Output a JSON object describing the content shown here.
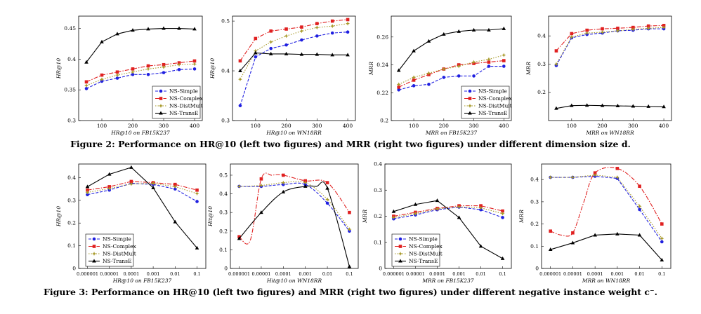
{
  "colors": {
    "NS-Simple": "#1f1fe0",
    "NS-Complex": "#e02020",
    "NS-DistMult": "#a89a2a",
    "NS-TransE": "#000000"
  },
  "series_names": [
    "NS-Simple",
    "NS-Complex",
    "NS-DistMult",
    "NS-TransE"
  ],
  "figure2": {
    "caption": "Figure 2: Performance on HR@10 (left two figures) and MRR (right two figures) under different dimension size d."
  },
  "figure3": {
    "caption": "Figure 3: Performance on HR@10 (left two figures) and MRR (right two figures) under different negative instance weight c⁻."
  },
  "chart_data": [
    {
      "type": "line",
      "figure": 2,
      "ylabel": "HR@10",
      "xlabel": "HR@10 on FB15K237",
      "x": [
        50,
        100,
        150,
        200,
        250,
        300,
        350,
        400
      ],
      "xticks": [
        "100",
        "200",
        "300",
        "400"
      ],
      "xlim": [
        25,
        425
      ],
      "ylim": [
        0.3,
        0.47
      ],
      "yticks": [
        "0.3",
        "0.35",
        "0.4",
        "0.45"
      ],
      "legend": "bottom-right",
      "series": [
        {
          "name": "NS-Simple",
          "values": [
            0.352,
            0.364,
            0.369,
            0.375,
            0.375,
            0.378,
            0.383,
            0.384
          ]
        },
        {
          "name": "NS-Complex",
          "values": [
            0.363,
            0.374,
            0.379,
            0.384,
            0.389,
            0.391,
            0.394,
            0.397
          ]
        },
        {
          "name": "NS-DistMult",
          "values": [
            0.357,
            0.367,
            0.374,
            0.379,
            0.384,
            0.387,
            0.391,
            0.392
          ]
        },
        {
          "name": "NS-TransE",
          "values": [
            0.395,
            0.428,
            0.441,
            0.447,
            0.449,
            0.45,
            0.45,
            0.449
          ]
        }
      ]
    },
    {
      "type": "line",
      "figure": 2,
      "ylabel": "HR@10",
      "xlabel": "HR@10 on WN18RR",
      "x": [
        50,
        100,
        150,
        200,
        250,
        300,
        350,
        400
      ],
      "xticks": [
        "100",
        "200",
        "300",
        "400"
      ],
      "xlim": [
        25,
        425
      ],
      "ylim": [
        0.3,
        0.51
      ],
      "yticks": [
        "0.3",
        "0.4",
        "0.5"
      ],
      "legend": "none",
      "series": [
        {
          "name": "NS-Simple",
          "values": [
            0.33,
            0.428,
            0.445,
            0.452,
            0.462,
            0.47,
            0.476,
            0.478
          ]
        },
        {
          "name": "NS-Complex",
          "values": [
            0.42,
            0.465,
            0.48,
            0.484,
            0.488,
            0.495,
            0.5,
            0.503
          ]
        },
        {
          "name": "NS-DistMult",
          "values": [
            0.383,
            0.44,
            0.458,
            0.47,
            0.48,
            0.487,
            0.49,
            0.495
          ]
        },
        {
          "name": "NS-TransE",
          "values": [
            0.4,
            0.436,
            0.434,
            0.434,
            0.433,
            0.433,
            0.432,
            0.432
          ]
        }
      ]
    },
    {
      "type": "line",
      "figure": 2,
      "ylabel": "MRR",
      "xlabel": "MRR on FB15K237",
      "x": [
        50,
        100,
        150,
        200,
        250,
        300,
        350,
        400
      ],
      "xticks": [
        "100",
        "200",
        "300",
        "400"
      ],
      "xlim": [
        25,
        425
      ],
      "ylim": [
        0.2,
        0.275
      ],
      "yticks": [
        "0.2",
        "0.22",
        "0.24",
        "0.26"
      ],
      "legend": "bottom-right",
      "series": [
        {
          "name": "NS-Simple",
          "values": [
            0.222,
            0.225,
            0.226,
            0.231,
            0.232,
            0.232,
            0.239,
            0.239
          ]
        },
        {
          "name": "NS-Complex",
          "values": [
            0.224,
            0.229,
            0.233,
            0.237,
            0.24,
            0.241,
            0.242,
            0.243
          ]
        },
        {
          "name": "NS-DistMult",
          "values": [
            0.226,
            0.231,
            0.234,
            0.237,
            0.239,
            0.242,
            0.244,
            0.247
          ]
        },
        {
          "name": "NS-TransE",
          "values": [
            0.236,
            0.25,
            0.257,
            0.262,
            0.264,
            0.265,
            0.265,
            0.266
          ]
        }
      ]
    },
    {
      "type": "line",
      "figure": 2,
      "ylabel": "MRR",
      "xlabel": "MRR on WN18RR",
      "x": [
        50,
        100,
        150,
        200,
        250,
        300,
        350,
        400
      ],
      "xticks": [
        "100",
        "200",
        "300",
        "400"
      ],
      "xlim": [
        25,
        425
      ],
      "ylim": [
        0.1,
        0.47
      ],
      "yticks": [
        "0.2",
        "0.3",
        "0.4"
      ],
      "legend": "none",
      "series": [
        {
          "name": "NS-Simple",
          "values": [
            0.295,
            0.393,
            0.405,
            0.41,
            0.418,
            0.42,
            0.425,
            0.425
          ]
        },
        {
          "name": "NS-Complex",
          "values": [
            0.347,
            0.408,
            0.42,
            0.425,
            0.427,
            0.43,
            0.435,
            0.437
          ]
        },
        {
          "name": "NS-DistMult",
          "values": [
            0.3,
            0.396,
            0.41,
            0.413,
            0.418,
            0.423,
            0.427,
            0.43
          ]
        },
        {
          "name": "NS-TransE",
          "values": [
            0.143,
            0.153,
            0.154,
            0.153,
            0.152,
            0.151,
            0.15,
            0.149
          ]
        }
      ]
    },
    {
      "type": "line",
      "figure": 3,
      "ylabel": "HR@10",
      "xlabel": "HR@10 on FB15K237",
      "x": [
        "0.000001",
        "0.00001",
        "0.0001",
        "0.001",
        "0.01",
        "0.1"
      ],
      "xticks": [
        "0.000001",
        "0.00001",
        "0.0001",
        "0.001",
        "0.01",
        "0.1"
      ],
      "xlim": [
        -0.4,
        5.4
      ],
      "ylim": [
        0.0,
        0.46
      ],
      "yticks": [
        "0",
        "0.1",
        "0.2",
        "0.3",
        "0.4"
      ],
      "legend": "bottom-left",
      "series": [
        {
          "name": "NS-Simple",
          "values": [
            0.325,
            0.345,
            0.375,
            0.37,
            0.35,
            0.295
          ]
        },
        {
          "name": "NS-Complex",
          "values": [
            0.345,
            0.36,
            0.383,
            0.378,
            0.37,
            0.345
          ]
        },
        {
          "name": "NS-DistMult",
          "values": [
            0.335,
            0.352,
            0.372,
            0.375,
            0.36,
            0.33
          ]
        },
        {
          "name": "NS-TransE",
          "values": [
            0.36,
            0.415,
            0.445,
            0.355,
            0.205,
            0.09
          ]
        }
      ]
    },
    {
      "type": "line",
      "figure": 3,
      "ylabel": "Hit@10",
      "xlabel": "Hit@10 on WN18RR",
      "x": [
        "0.000001",
        "0.00001",
        "0.0001",
        "0.001",
        "0.01",
        "0.1"
      ],
      "xticks": [
        "0.000001",
        "0.00001",
        "0.0001",
        "0.001",
        "0.01",
        "0.1"
      ],
      "xlim": [
        -0.4,
        5.4
      ],
      "ylim": [
        0.0,
        0.56
      ],
      "yticks": [
        "0",
        "0.1",
        "0.2",
        "0.3",
        "0.4",
        "0.5"
      ],
      "legend": "none",
      "series": [
        {
          "name": "NS-Simple",
          "x": [
            0,
            1,
            2,
            3,
            4,
            5
          ],
          "values": [
            0.44,
            0.44,
            0.45,
            0.45,
            0.35,
            0.2
          ]
        },
        {
          "name": "NS-Complex",
          "x": [
            0,
            0.5,
            1,
            1.5,
            2,
            3,
            4,
            5
          ],
          "values": [
            0.17,
            0.15,
            0.48,
            0.5,
            0.5,
            0.47,
            0.46,
            0.3
          ]
        },
        {
          "name": "NS-DistMult",
          "x": [
            0,
            1,
            2,
            3,
            4,
            5
          ],
          "values": [
            0.44,
            0.445,
            0.46,
            0.46,
            0.37,
            0.21
          ]
        },
        {
          "name": "NS-TransE",
          "x": [
            0,
            1,
            2,
            3,
            3.5,
            4,
            5
          ],
          "values": [
            0.16,
            0.3,
            0.41,
            0.44,
            0.44,
            0.43,
            0.01
          ]
        }
      ]
    },
    {
      "type": "line",
      "figure": 3,
      "ylabel": "MRR",
      "xlabel": "MRR on FB15K237",
      "x": [
        "0.000001",
        "0.00001",
        "0.0001",
        "0.001",
        "0.01",
        "0.1"
      ],
      "xticks": [
        "0.000001",
        "0.00001",
        "0.0001",
        "0.001",
        "0.01",
        "0.1"
      ],
      "xlim": [
        -0.4,
        5.4
      ],
      "ylim": [
        0.0,
        0.4
      ],
      "yticks": [
        "0",
        "0.1",
        "0.2",
        "0.3",
        "0.4"
      ],
      "legend": "bottom-left",
      "series": [
        {
          "name": "NS-Simple",
          "values": [
            0.19,
            0.205,
            0.225,
            0.235,
            0.225,
            0.195
          ]
        },
        {
          "name": "NS-Complex",
          "values": [
            0.2,
            0.215,
            0.23,
            0.24,
            0.24,
            0.22
          ]
        },
        {
          "name": "NS-DistMult",
          "values": [
            0.195,
            0.21,
            0.228,
            0.236,
            0.232,
            0.21
          ]
        },
        {
          "name": "NS-TransE",
          "values": [
            0.218,
            0.245,
            0.26,
            0.195,
            0.085,
            0.038
          ]
        }
      ]
    },
    {
      "type": "line",
      "figure": 3,
      "ylabel": "MRR",
      "xlabel": "MRR on WN18RR",
      "x": [
        "0.000001",
        "0.00001",
        "0.0001",
        "0.001",
        "0.01",
        "0.1"
      ],
      "xticks": [
        "0.000001",
        "0.00001",
        "0.0001",
        "0.001",
        "0.01",
        "0.1"
      ],
      "xlim": [
        -0.4,
        5.4
      ],
      "ylim": [
        0.0,
        0.47
      ],
      "yticks": [
        "0",
        "0.1",
        "0.2",
        "0.3",
        "0.4"
      ],
      "legend": "none",
      "series": [
        {
          "name": "NS-Simple",
          "values": [
            0.41,
            0.41,
            0.415,
            0.405,
            0.265,
            0.12
          ]
        },
        {
          "name": "NS-Complex",
          "x": [
            0,
            0.5,
            1,
            1.5,
            2,
            3,
            4,
            5
          ],
          "values": [
            0.168,
            0.15,
            0.16,
            0.3,
            0.43,
            0.45,
            0.37,
            0.2
          ]
        },
        {
          "name": "NS-DistMult",
          "values": [
            0.41,
            0.41,
            0.42,
            0.41,
            0.28,
            0.135
          ]
        },
        {
          "name": "NS-TransE",
          "values": [
            0.085,
            0.115,
            0.15,
            0.155,
            0.15,
            0.038
          ]
        }
      ]
    }
  ]
}
